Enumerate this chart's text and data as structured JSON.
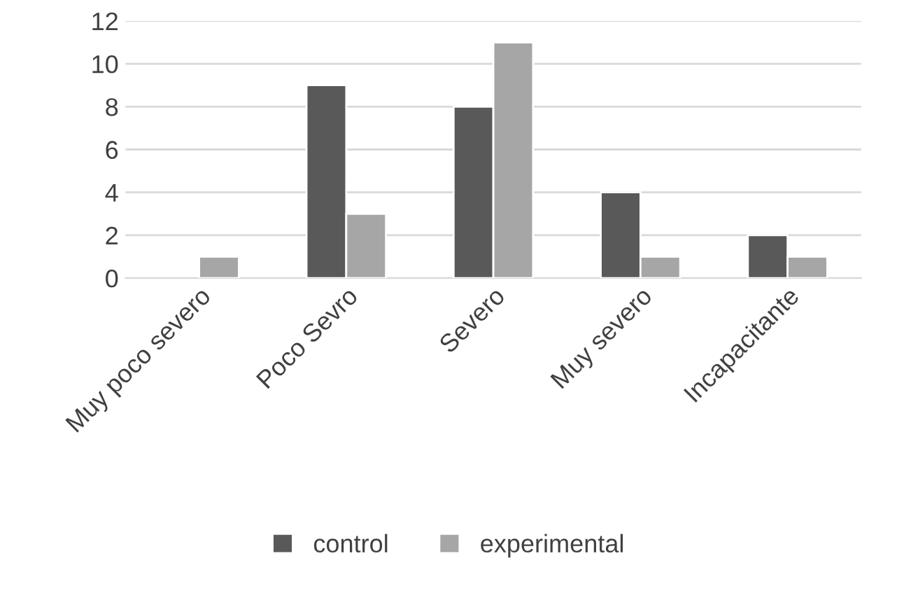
{
  "chart_data": {
    "type": "bar",
    "categories": [
      "Muy poco severo",
      "Poco Sevro",
      "Severo",
      "Muy severo",
      "Incapacitante"
    ],
    "series": [
      {
        "name": "control",
        "color": "#595959",
        "values": [
          null,
          9,
          8,
          4,
          2
        ]
      },
      {
        "name": "experimental",
        "color": "#a6a6a6",
        "values": [
          1,
          3,
          11,
          1,
          1
        ]
      }
    ],
    "ylim": [
      0,
      12
    ],
    "yticks": [
      0,
      2,
      4,
      6,
      8,
      10,
      12
    ],
    "grid": "y",
    "legend": "bottom"
  }
}
